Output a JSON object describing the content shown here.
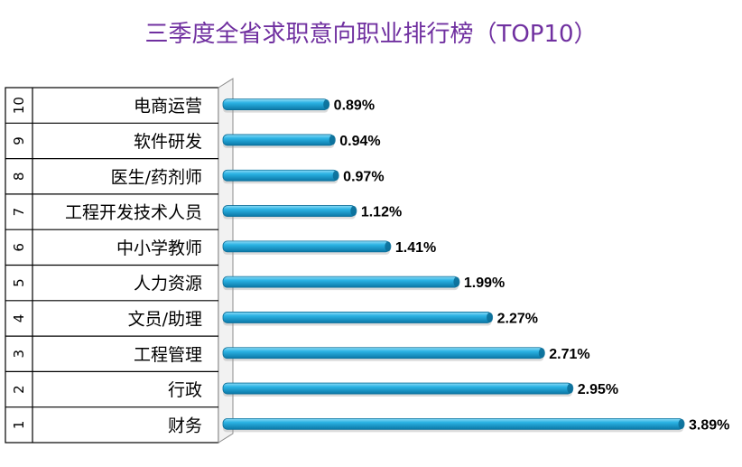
{
  "chart_data": {
    "type": "bar",
    "orientation": "horizontal",
    "title": "三季度全省求职意向职业排行榜（TOP10）",
    "ranks": [
      "10",
      "9",
      "8",
      "7",
      "6",
      "5",
      "4",
      "3",
      "2",
      "1"
    ],
    "categories": [
      "电商运营",
      "软件研发",
      "医生/药剂师",
      "工程开发技术人员",
      "中小学教师",
      "人力资源",
      "文员/助理",
      "工程管理",
      "行政",
      "财务"
    ],
    "values": [
      0.89,
      0.94,
      0.97,
      1.12,
      1.41,
      1.99,
      2.27,
      2.71,
      2.95,
      3.89
    ],
    "value_labels": [
      "0.89%",
      "0.94%",
      "0.97%",
      "1.12%",
      "1.41%",
      "1.99%",
      "2.27%",
      "2.71%",
      "2.95%",
      "3.89%"
    ],
    "xlim": [
      0,
      3.89
    ],
    "bar_color": "#1fa3d6",
    "bar_color_light": "#7fd3f2",
    "bar_color_dark": "#0b6f99",
    "title_color": "#7030a0",
    "grid": false,
    "legend": false
  }
}
